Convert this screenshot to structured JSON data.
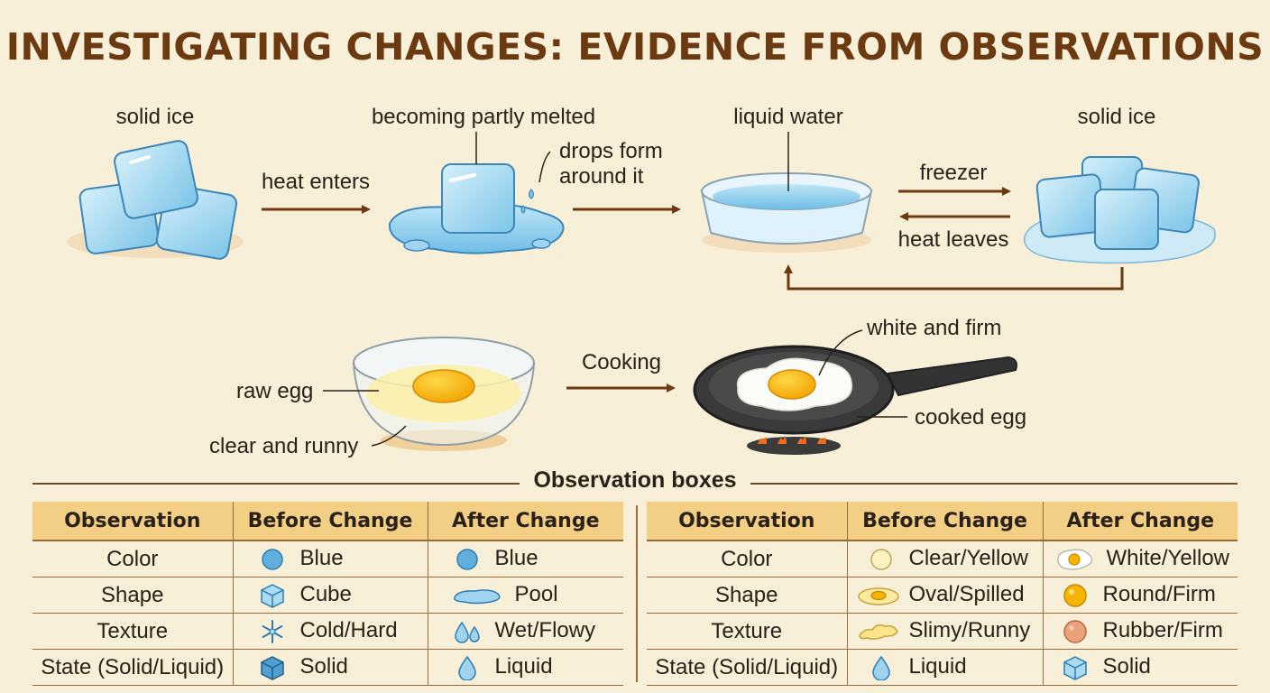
{
  "title": "INVESTIGATING CHANGES: EVIDENCE FROM OBSERVATIONS",
  "ice_process": {
    "solid_ice_1": "solid ice",
    "heat_enters": "heat enters",
    "partly_melted": "becoming partly melted",
    "drops_line1": "drops form",
    "drops_line2": "around it",
    "liquid_water": "liquid water",
    "freezer": "freezer",
    "heat_leaves": "heat leaves",
    "solid_ice_2": "solid ice"
  },
  "egg_process": {
    "raw_egg": "raw egg",
    "clear_runny": "clear and runny",
    "cooking": "Cooking",
    "white_firm": "white and firm",
    "cooked_egg": "cooked egg"
  },
  "observation_title": "Observation boxes",
  "tables": [
    {
      "headers": [
        "Observation",
        "Before Change",
        "After Change"
      ],
      "rows": [
        {
          "label": "Color",
          "before": {
            "text": "Blue",
            "icon": "blue-circle-icon"
          },
          "after": {
            "text": "Blue",
            "icon": "blue-circle-icon"
          }
        },
        {
          "label": "Shape",
          "before": {
            "text": "Cube",
            "icon": "ice-cube-icon"
          },
          "after": {
            "text": "Pool",
            "icon": "water-pool-icon"
          }
        },
        {
          "label": "Texture",
          "before": {
            "text": "Cold/Hard",
            "icon": "snowflake-icon"
          },
          "after": {
            "text": "Wet/Flowy",
            "icon": "water-drops-icon"
          }
        },
        {
          "label": "State (Solid/Liquid)",
          "before": {
            "text": "Solid",
            "icon": "blue-cube-icon"
          },
          "after": {
            "text": "Liquid",
            "icon": "water-drop-icon"
          }
        }
      ]
    },
    {
      "headers": [
        "Observation",
        "Before Change",
        "After Change"
      ],
      "rows": [
        {
          "label": "Color",
          "before": {
            "text": "Clear/Yellow",
            "icon": "pale-yellow-circle-icon"
          },
          "after": {
            "text": "White/Yellow",
            "icon": "fried-egg-icon"
          }
        },
        {
          "label": "Shape",
          "before": {
            "text": "Oval/Spilled",
            "icon": "spilled-egg-icon"
          },
          "after": {
            "text": "Round/Firm",
            "icon": "yolk-circle-icon"
          }
        },
        {
          "label": "Texture",
          "before": {
            "text": "Slimy/Runny",
            "icon": "slimy-egg-icon"
          },
          "after": {
            "text": "Rubber/Firm",
            "icon": "rubber-ball-icon"
          }
        },
        {
          "label": "State (Solid/Liquid)",
          "before": {
            "text": "Liquid",
            "icon": "water-drop-icon"
          },
          "after": {
            "text": "Solid",
            "icon": "ice-cube-icon"
          }
        }
      ]
    }
  ]
}
